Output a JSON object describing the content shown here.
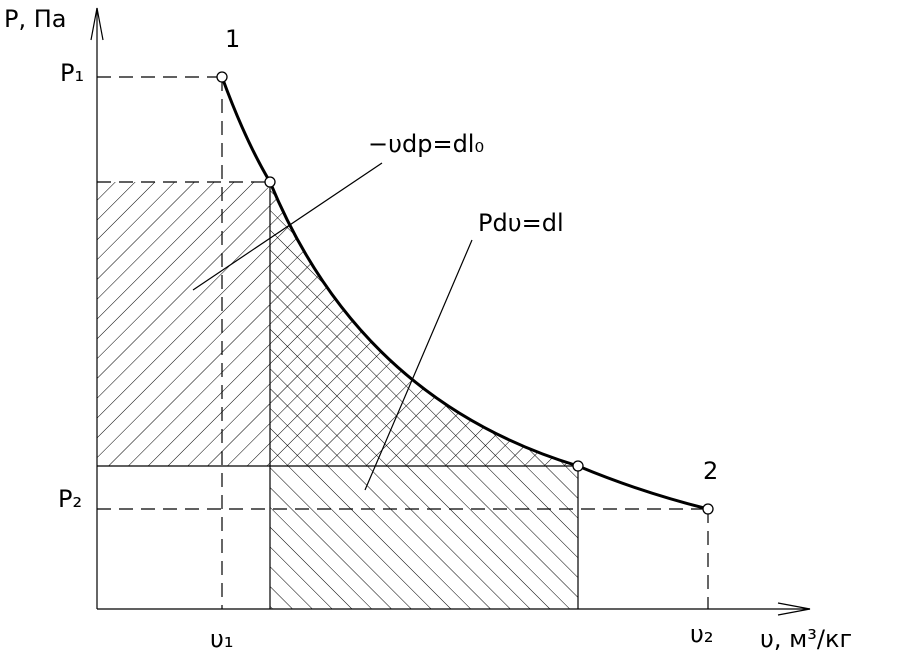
{
  "axes": {
    "y_label": "P, Па",
    "x_label": "υ, м³/кг"
  },
  "ticks": {
    "y": [
      "P₁",
      "P₂"
    ],
    "x": [
      "υ₁",
      "υ₂"
    ]
  },
  "points": [
    "1",
    "2"
  ],
  "annotations": [
    "−υdp=dl₀",
    "Pdυ=dl"
  ]
}
